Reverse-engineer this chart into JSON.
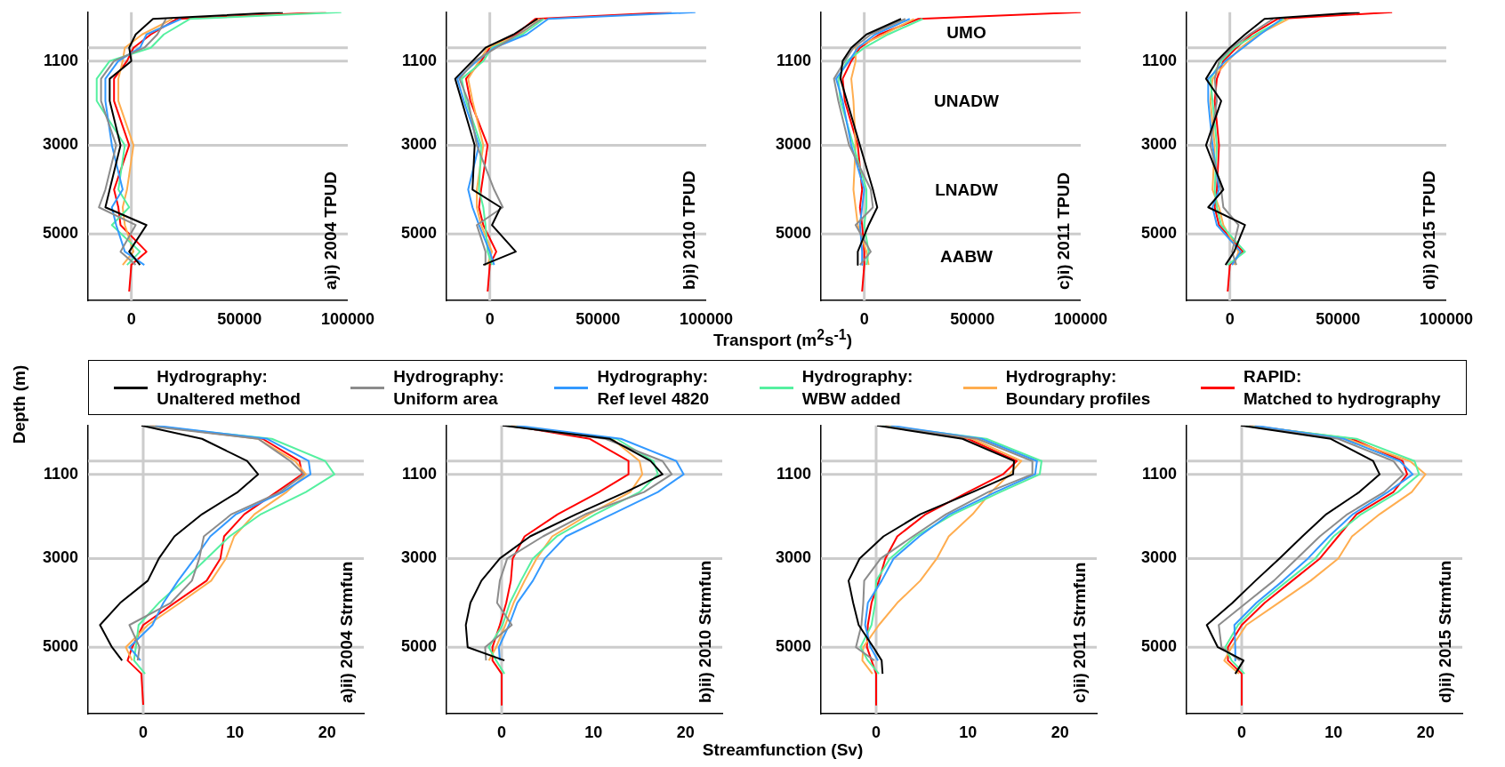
{
  "chart_data": [
    {
      "type": "line",
      "ylabel": "Depth (m)",
      "xlim": [
        -20000,
        100000
      ],
      "xticks": [
        0,
        50000,
        100000
      ],
      "ylim": [
        6500,
        0
      ],
      "yticks": [
        1100,
        3000,
        5000
      ],
      "legend": "bottom",
      "annotations": [
        "a)i) 2004 TPUD"
      ],
      "ref_lines": [
        {
          "axis": "x",
          "value": 0
        },
        {
          "axis": "y",
          "value": 800
        },
        {
          "axis": "y",
          "value": 1100
        },
        {
          "axis": "y",
          "value": 3000
        },
        {
          "axis": "y",
          "value": 5000
        }
      ],
      "series": [
        {
          "name": "Hydrography:\nUnaltered method",
          "color": "#000000",
          "x": [
            70000,
            10000,
            2000,
            -1000,
            0,
            -10000,
            -10000,
            -5000,
            -10000,
            -12000,
            7000,
            -1000,
            4000
          ],
          "values": [
            0,
            150,
            500,
            800,
            1100,
            1500,
            2000,
            3000,
            4000,
            4400,
            4800,
            5400,
            5700
          ]
        },
        {
          "name": "Hydrography:\nUniform area",
          "color": "#8c8c8c",
          "x": [
            16000,
            12000,
            6000,
            -8000,
            -14000,
            -14000,
            -7000,
            -12000,
            -15000,
            2000,
            -5000,
            2000
          ],
          "values": [
            150,
            500,
            800,
            1100,
            1500,
            2000,
            3000,
            4000,
            4400,
            4800,
            5400,
            5700
          ]
        },
        {
          "name": "Hydrography:\nRef level 4820",
          "color": "#3399ff",
          "x": [
            23000,
            7000,
            4000,
            -6000,
            -12000,
            -12000,
            -9000,
            -4000,
            -9000,
            -7000,
            -3000,
            6000
          ],
          "values": [
            150,
            500,
            800,
            1100,
            1500,
            2000,
            3000,
            4000,
            4400,
            4800,
            5400,
            5700
          ]
        },
        {
          "name": "Hydrography:\nWBW added",
          "color": "#55f0a0",
          "x": [
            97000,
            27000,
            15000,
            9000,
            -10000,
            -16000,
            -16000,
            -3000,
            -6000,
            -1000,
            -9000,
            4000,
            -2000
          ],
          "values": [
            0,
            150,
            500,
            800,
            1100,
            1500,
            2000,
            3000,
            4000,
            4400,
            4800,
            5400,
            5700
          ]
        },
        {
          "name": "Hydrography:\nBoundary profiles",
          "color": "#ffad4f",
          "x": [
            19000,
            5000,
            -3000,
            -4000,
            -6000,
            -6000,
            1000,
            -2000,
            -4000,
            -3000,
            1000,
            -4000
          ],
          "values": [
            150,
            500,
            800,
            1100,
            1500,
            2000,
            3000,
            4000,
            4400,
            4800,
            5400,
            5700
          ]
        },
        {
          "name": "RAPID:\nMatched to hydrography",
          "color": "#ff0000",
          "x": [
            90000,
            21000,
            9000,
            1000,
            -2000,
            -8000,
            -8000,
            -1000,
            -8000,
            -6000,
            -5000,
            7000,
            0,
            -1000
          ],
          "values": [
            0,
            150,
            500,
            800,
            1100,
            1500,
            2000,
            3000,
            4000,
            4400,
            4800,
            5400,
            5700,
            6300
          ]
        }
      ]
    },
    {
      "type": "line",
      "xlim": [
        -20000,
        100000
      ],
      "xticks": [
        0,
        50000,
        100000
      ],
      "ylim": [
        6500,
        0
      ],
      "yticks": [
        1100,
        3000,
        5000
      ],
      "annotations": [
        "b)i) 2010 TPUD"
      ],
      "ref_lines": [
        {
          "axis": "x",
          "value": 0
        },
        {
          "axis": "y",
          "value": 800
        },
        {
          "axis": "y",
          "value": 1100
        },
        {
          "axis": "y",
          "value": 3000
        },
        {
          "axis": "y",
          "value": 5000
        }
      ],
      "series": [
        {
          "color": "#000000",
          "x": [
            22000,
            11000,
            -2000,
            -8000,
            -16000,
            -13000,
            -7000,
            -8000,
            5000,
            1000,
            12000,
            -3000
          ],
          "values": [
            150,
            500,
            800,
            1100,
            1500,
            2000,
            3000,
            4000,
            4400,
            4800,
            5400,
            5700
          ]
        },
        {
          "color": "#8c8c8c",
          "x": [
            24000,
            13000,
            3000,
            -7000,
            -14000,
            -10000,
            -6000,
            2000,
            6000,
            -6000,
            -2000,
            -2000
          ],
          "values": [
            150,
            500,
            800,
            1100,
            1500,
            2000,
            3000,
            4000,
            4400,
            4800,
            5400,
            5700
          ]
        },
        {
          "color": "#3399ff",
          "x": [
            95000,
            27000,
            17000,
            2000,
            -6000,
            -15000,
            -12000,
            -5000,
            -10000,
            -8000,
            -5000,
            0,
            2000
          ],
          "values": [
            0,
            150,
            500,
            800,
            1100,
            1500,
            2000,
            3000,
            4000,
            4400,
            4800,
            5400,
            5700
          ]
        },
        {
          "color": "#55f0a0",
          "x": [
            25000,
            15000,
            1000,
            -3000,
            -13000,
            -11000,
            -4000,
            -5000,
            -3000,
            -2000,
            -1000,
            1000
          ],
          "values": [
            150,
            500,
            800,
            1100,
            1500,
            2000,
            3000,
            4000,
            4400,
            4800,
            5400,
            5700
          ]
        },
        {
          "color": "#ffad4f",
          "x": [
            23000,
            14000,
            -1000,
            -5000,
            -10000,
            -8000,
            -3000,
            -6000,
            -6000,
            -4000,
            1000,
            -1000
          ],
          "values": [
            150,
            500,
            800,
            1100,
            1500,
            2000,
            3000,
            4000,
            4400,
            4800,
            5400,
            5700
          ]
        },
        {
          "color": "#ff0000",
          "x": [
            84000,
            21000,
            12000,
            0,
            -4000,
            -11000,
            -9000,
            -1000,
            -4000,
            -5000,
            -3000,
            3000,
            0,
            -1000
          ],
          "values": [
            0,
            150,
            500,
            800,
            1100,
            1500,
            2000,
            3000,
            4000,
            4400,
            4800,
            5400,
            5700,
            6300
          ]
        }
      ]
    },
    {
      "type": "line",
      "xlabel": "Transport (m$^{2}$s$^{-1}$)",
      "xlim": [
        -20000,
        100000
      ],
      "xticks": [
        0,
        50000,
        100000
      ],
      "ylim": [
        6500,
        0
      ],
      "yticks": [
        1100,
        3000,
        5000
      ],
      "annotations": [
        "c)i) 2011 TPUD",
        "UMO",
        "UNADW",
        "LNADW",
        "AABW"
      ],
      "ref_lines": [
        {
          "axis": "x",
          "value": 0
        },
        {
          "axis": "y",
          "value": 800
        },
        {
          "axis": "y",
          "value": 1100
        },
        {
          "axis": "y",
          "value": 3000
        },
        {
          "axis": "y",
          "value": 5000
        }
      ],
      "series": [
        {
          "color": "#000000",
          "x": [
            17000,
            1000,
            -6000,
            -10000,
            -11000,
            -8000,
            -2000,
            4000,
            6000,
            2000,
            -3000,
            -3000
          ],
          "values": [
            150,
            500,
            800,
            1100,
            1500,
            2000,
            3000,
            4000,
            4400,
            4800,
            5400,
            5700
          ]
        },
        {
          "color": "#8c8c8c",
          "x": [
            19000,
            3000,
            -5000,
            -9000,
            -14000,
            -12000,
            -7000,
            3000,
            4000,
            -4000,
            3000,
            -2000
          ],
          "values": [
            150,
            500,
            800,
            1100,
            1500,
            2000,
            3000,
            4000,
            4400,
            4800,
            5400,
            5700
          ]
        },
        {
          "color": "#3399ff",
          "x": [
            21000,
            5000,
            -3000,
            -7000,
            -13000,
            -10000,
            -6000,
            0,
            -1000,
            -2000,
            -1000,
            -1000
          ],
          "values": [
            150,
            500,
            800,
            1100,
            1500,
            2000,
            3000,
            4000,
            4400,
            4800,
            5400,
            5700
          ]
        },
        {
          "color": "#55f0a0",
          "x": [
            27000,
            11000,
            0,
            -8000,
            -12000,
            -11000,
            -5000,
            1000,
            1000,
            0,
            2000,
            1000
          ],
          "values": [
            150,
            500,
            800,
            1100,
            1500,
            2000,
            3000,
            4000,
            4400,
            4800,
            5400,
            5700
          ]
        },
        {
          "color": "#ffad4f",
          "x": [
            23000,
            9000,
            -4000,
            -4000,
            -6000,
            -5000,
            -4000,
            -5000,
            -4000,
            -3000,
            1000,
            2000
          ],
          "values": [
            150,
            500,
            800,
            1100,
            1500,
            2000,
            3000,
            4000,
            4400,
            4800,
            5400,
            5700
          ]
        },
        {
          "color": "#ff0000",
          "x": [
            100000,
            25000,
            7000,
            -2000,
            -6000,
            -10000,
            -9000,
            -3000,
            -1000,
            -2000,
            -1000,
            0,
            0,
            -1000
          ],
          "values": [
            0,
            150,
            500,
            800,
            1100,
            1500,
            2000,
            3000,
            4000,
            4400,
            4800,
            5400,
            5700,
            6300
          ]
        }
      ]
    },
    {
      "type": "line",
      "xlim": [
        -20000,
        100000
      ],
      "xticks": [
        0,
        50000,
        100000
      ],
      "ylim": [
        6500,
        0
      ],
      "yticks": [
        1100,
        3000,
        5000
      ],
      "annotations": [
        "d)i) 2015 TPUD"
      ],
      "ref_lines": [
        {
          "axis": "x",
          "value": 0
        },
        {
          "axis": "y",
          "value": 800
        },
        {
          "axis": "y",
          "value": 1100
        },
        {
          "axis": "y",
          "value": 3000
        },
        {
          "axis": "y",
          "value": 5000
        }
      ],
      "series": [
        {
          "color": "#000000",
          "x": [
            60000,
            16000,
            7000,
            0,
            -6000,
            -11000,
            -4000,
            -11000,
            -3000,
            -10000,
            7000,
            2000,
            -2000
          ],
          "values": [
            0,
            150,
            500,
            800,
            1100,
            1500,
            2000,
            3000,
            4000,
            4400,
            4800,
            5400,
            5700
          ]
        },
        {
          "color": "#8c8c8c",
          "x": [
            20000,
            9000,
            1000,
            -5000,
            -7000,
            -6000,
            -9000,
            -4000,
            -3000,
            4000,
            1000,
            3000
          ],
          "values": [
            150,
            500,
            800,
            1100,
            1500,
            2000,
            3000,
            4000,
            4400,
            4800,
            5400,
            5700
          ]
        },
        {
          "color": "#3399ff",
          "x": [
            24000,
            14000,
            6000,
            -2000,
            -10000,
            -10000,
            -8000,
            -5000,
            -8000,
            -6000,
            5000,
            1000
          ],
          "values": [
            150,
            500,
            800,
            1100,
            1500,
            2000,
            3000,
            4000,
            4400,
            4800,
            5400,
            5700
          ]
        },
        {
          "color": "#55f0a0",
          "x": [
            25000,
            12000,
            2000,
            -4000,
            -9000,
            -8000,
            -6000,
            -7000,
            -6000,
            -4000,
            7000,
            -1000
          ],
          "values": [
            150,
            500,
            800,
            1100,
            1500,
            2000,
            3000,
            4000,
            4400,
            4800,
            5400,
            5700
          ]
        },
        {
          "color": "#ffad4f",
          "x": [
            27000,
            13000,
            5000,
            -1000,
            -8000,
            -9000,
            -7000,
            -8000,
            -5000,
            -3000,
            4000,
            2000
          ],
          "values": [
            150,
            500,
            800,
            1100,
            1500,
            2000,
            3000,
            4000,
            4400,
            4800,
            5400,
            5700
          ]
        },
        {
          "color": "#ff0000",
          "x": [
            75000,
            22000,
            10000,
            3000,
            -3000,
            -6000,
            -7000,
            -5000,
            -6000,
            -7000,
            -5000,
            6000,
            0,
            -1000
          ],
          "values": [
            0,
            150,
            500,
            800,
            1100,
            1500,
            2000,
            3000,
            4000,
            4400,
            4800,
            5400,
            5700,
            6300
          ]
        }
      ]
    },
    {
      "type": "line",
      "xlim": [
        -6,
        24
      ],
      "xticks": [
        0,
        10,
        20
      ],
      "ylim": [
        6500,
        0
      ],
      "yticks": [
        1100,
        3000,
        5000
      ],
      "annotations": [
        "a)ii) 2004 Strmfun"
      ],
      "ref_lines": [
        {
          "axis": "x",
          "value": 0
        },
        {
          "axis": "y",
          "value": 800
        },
        {
          "axis": "y",
          "value": 1100
        },
        {
          "axis": "y",
          "value": 3000
        },
        {
          "axis": "y",
          "value": 5000
        }
      ],
      "series": [
        {
          "color": "#000000",
          "x": [
            -0.2,
            6.4,
            11.3,
            12.5,
            10.3,
            6.4,
            3.4,
            1.7,
            0.5,
            -2.5,
            -4.7,
            -3.4,
            -2.3
          ],
          "values": [
            0,
            300,
            800,
            1100,
            1500,
            2000,
            2500,
            3000,
            3500,
            4000,
            4500,
            5000,
            5300
          ]
        },
        {
          "color": "#8c8c8c",
          "x": [
            0.1,
            12.5,
            16,
            17.5,
            14.9,
            9.6,
            6.6,
            6.1,
            5.3,
            3,
            -1.5,
            -0.4,
            -0.6
          ],
          "values": [
            0,
            300,
            800,
            1100,
            1500,
            2000,
            2500,
            3000,
            3500,
            4000,
            4500,
            5000,
            5300
          ]
        },
        {
          "color": "#3399ff",
          "x": [
            1.3,
            13.5,
            18,
            18.2,
            15.2,
            10.1,
            7.3,
            5.6,
            3.8,
            2.2,
            1,
            -1.5,
            -0.3
          ],
          "values": [
            0,
            300,
            800,
            1100,
            1500,
            2000,
            2500,
            3000,
            3500,
            4000,
            4500,
            5000,
            5300
          ]
        },
        {
          "color": "#55f0a0",
          "x": [
            0.4,
            14,
            19.8,
            20.8,
            17.7,
            12.8,
            9.4,
            6.9,
            4.4,
            1.7,
            -0.5,
            -0.8,
            -1,
            0.2
          ],
          "values": [
            0,
            300,
            800,
            1100,
            1500,
            2000,
            2500,
            3000,
            3500,
            4000,
            4500,
            5000,
            5300,
            5600
          ]
        },
        {
          "color": "#ffad4f",
          "x": [
            1,
            12.5,
            16.5,
            17.7,
            15.6,
            12.1,
            9.9,
            9,
            7.4,
            4,
            0.5,
            -1.9,
            -1.2
          ],
          "values": [
            0,
            300,
            800,
            1100,
            1500,
            2000,
            2500,
            3000,
            3500,
            4000,
            4500,
            5000,
            5300
          ]
        },
        {
          "color": "#ff0000",
          "x": [
            0.7,
            13,
            17,
            17.3,
            14.5,
            11,
            8.8,
            8.4,
            6.9,
            3.4,
            0,
            -1.2,
            -1.7,
            -0.2,
            0
          ],
          "values": [
            0,
            300,
            800,
            1100,
            1500,
            2000,
            2500,
            3000,
            3500,
            4000,
            4500,
            5000,
            5300,
            5600,
            6300
          ]
        }
      ]
    },
    {
      "type": "line",
      "xlim": [
        -6,
        24
      ],
      "xticks": [
        0,
        10,
        20
      ],
      "ylim": [
        6500,
        0
      ],
      "yticks": [
        1100,
        3000,
        5000
      ],
      "annotations": [
        "b)ii) 2010 Strmfun"
      ],
      "ref_lines": [
        {
          "axis": "x",
          "value": 0
        },
        {
          "axis": "y",
          "value": 800
        },
        {
          "axis": "y",
          "value": 1100
        },
        {
          "axis": "y",
          "value": 3000
        },
        {
          "axis": "y",
          "value": 5000
        }
      ],
      "series": [
        {
          "color": "#000000",
          "x": [
            0.1,
            11.8,
            16.2,
            17.5,
            13.5,
            8.1,
            3.1,
            -0.2,
            -2.2,
            -3.4,
            -3.9,
            -3.7,
            0.3
          ],
          "values": [
            0,
            300,
            800,
            1100,
            1500,
            2000,
            2500,
            3000,
            3500,
            4000,
            4500,
            5000,
            5300
          ]
        },
        {
          "color": "#8c8c8c",
          "x": [
            0.4,
            11.3,
            17.5,
            18.5,
            15.5,
            9.1,
            4.5,
            0.6,
            -0.2,
            -0.5,
            1.1,
            -1.8,
            -1.7
          ],
          "values": [
            0,
            300,
            800,
            1100,
            1500,
            2000,
            2500,
            3000,
            3500,
            4000,
            4500,
            5000,
            5300
          ]
        },
        {
          "color": "#3399ff",
          "x": [
            1.6,
            13,
            19,
            19.8,
            17,
            12,
            7,
            4.7,
            3.4,
            1.7,
            0.8,
            -0.3,
            -0.2
          ],
          "values": [
            0,
            300,
            800,
            1100,
            1500,
            2000,
            2500,
            3000,
            3500,
            4000,
            4500,
            5000,
            5300
          ]
        },
        {
          "color": "#55f0a0",
          "x": [
            0.7,
            12.5,
            16.5,
            17,
            15,
            10.2,
            6,
            3.4,
            2.1,
            0.9,
            0.1,
            -1.4,
            -0.6,
            0.3
          ],
          "values": [
            0,
            300,
            800,
            1100,
            1500,
            2000,
            2500,
            3000,
            3500,
            4000,
            4500,
            5000,
            5300,
            5600
          ]
        },
        {
          "color": "#ffad4f",
          "x": [
            1.3,
            12,
            15,
            15.3,
            14,
            9.5,
            5.5,
            3.8,
            2.5,
            1.3,
            0.4,
            -0.6,
            -1.4
          ],
          "values": [
            0,
            300,
            800,
            1100,
            1500,
            2000,
            2500,
            3000,
            3500,
            4000,
            4500,
            5000,
            5300
          ]
        },
        {
          "color": "#ff0000",
          "x": [
            1,
            9.6,
            13.8,
            13.8,
            10.6,
            6.1,
            2.5,
            1.2,
            1,
            0.5,
            -0.2,
            -1,
            -1,
            0,
            0
          ],
          "values": [
            0,
            300,
            800,
            1100,
            1500,
            2000,
            2500,
            3000,
            3500,
            4000,
            4500,
            5000,
            5300,
            5600,
            6300
          ]
        }
      ]
    },
    {
      "type": "line",
      "xlabel": "Streamfunction (Sv)",
      "xlim": [
        -6,
        24
      ],
      "xticks": [
        0,
        10,
        20
      ],
      "ylim": [
        6500,
        0
      ],
      "yticks": [
        1100,
        3000,
        5000
      ],
      "annotations": [
        "c)ii) 2011 Strmfun"
      ],
      "ref_lines": [
        {
          "axis": "x",
          "value": 0
        },
        {
          "axis": "y",
          "value": 800
        },
        {
          "axis": "y",
          "value": 1100
        },
        {
          "axis": "y",
          "value": 3000
        },
        {
          "axis": "y",
          "value": 5000
        }
      ],
      "series": [
        {
          "color": "#000000",
          "x": [
            0.1,
            9.4,
            15,
            14.9,
            10.5,
            4.8,
            0.8,
            -1.8,
            -3,
            -2.5,
            -1.9,
            -0.3,
            0.6,
            0.7
          ],
          "values": [
            0,
            300,
            800,
            1100,
            1500,
            2000,
            2500,
            3000,
            3500,
            4000,
            4500,
            5000,
            5300,
            5600
          ]
        },
        {
          "color": "#8c8c8c",
          "x": [
            0.4,
            11,
            17,
            17,
            12.2,
            7.6,
            4,
            0.5,
            -1.3,
            -1.4,
            -1.6,
            -2.2,
            -0.2
          ],
          "values": [
            0,
            300,
            800,
            1100,
            1500,
            2000,
            2500,
            3000,
            3500,
            4000,
            4500,
            5000,
            5300
          ]
        },
        {
          "color": "#3399ff",
          "x": [
            1.6,
            11.5,
            17.5,
            17.3,
            13,
            8,
            4.7,
            1.9,
            0.6,
            -0.9,
            -1.2,
            -0.6,
            0.2
          ],
          "values": [
            0,
            300,
            800,
            1100,
            1500,
            2000,
            2500,
            3000,
            3500,
            4000,
            4500,
            5000,
            5300
          ]
        },
        {
          "color": "#55f0a0",
          "x": [
            0.7,
            12,
            18,
            17.8,
            13.5,
            8.4,
            4.3,
            1.5,
            0,
            -0.1,
            -0.5,
            -1.7,
            -0.9,
            0.3
          ],
          "values": [
            0,
            300,
            800,
            1100,
            1500,
            2000,
            2500,
            3000,
            3500,
            4000,
            4500,
            5000,
            5300,
            5600
          ]
        },
        {
          "color": "#ffad4f",
          "x": [
            1.3,
            10.5,
            15.8,
            14.5,
            12.5,
            10.5,
            7.9,
            6.6,
            4.8,
            2.3,
            0.3,
            -1.4,
            -1.5,
            -0.4
          ],
          "values": [
            0,
            300,
            800,
            1100,
            1500,
            2000,
            2500,
            3000,
            3500,
            4000,
            4500,
            5000,
            5300,
            5600
          ]
        },
        {
          "color": "#ff0000",
          "x": [
            1,
            10,
            15.3,
            13.8,
            10,
            5.4,
            2.3,
            1,
            0.3,
            -0.5,
            -0.9,
            -1,
            -0.5,
            0,
            0
          ],
          "values": [
            0,
            300,
            800,
            1100,
            1500,
            2000,
            2500,
            3000,
            3500,
            4000,
            4500,
            5000,
            5300,
            5600,
            6300
          ]
        }
      ]
    },
    {
      "type": "line",
      "xlim": [
        -6,
        24
      ],
      "xticks": [
        0,
        10,
        20
      ],
      "ylim": [
        6500,
        0
      ],
      "yticks": [
        1100,
        3000,
        5000
      ],
      "annotations": [
        "d)ii) 2015 Strmfun"
      ],
      "ref_lines": [
        {
          "axis": "x",
          "value": 0
        },
        {
          "axis": "y",
          "value": 800
        },
        {
          "axis": "y",
          "value": 1100
        },
        {
          "axis": "y",
          "value": 3000
        },
        {
          "axis": "y",
          "value": 5000
        }
      ],
      "series": [
        {
          "color": "#000000",
          "x": [
            -0.1,
            9.7,
            14.3,
            15,
            12.8,
            9.2,
            6.6,
            4.1,
            1.5,
            -1,
            -3.8,
            -2.6,
            0.2,
            -0.7
          ],
          "values": [
            0,
            300,
            800,
            1100,
            1500,
            2000,
            2500,
            3000,
            3500,
            4000,
            4500,
            5000,
            5300,
            5600
          ]
        },
        {
          "color": "#8c8c8c",
          "x": [
            0.2,
            10.5,
            16.5,
            17.6,
            15.5,
            11.5,
            8.5,
            6,
            3.5,
            0.5,
            -2.5,
            -2.2,
            -0.2
          ],
          "values": [
            0,
            300,
            800,
            1100,
            1500,
            2000,
            2500,
            3000,
            3500,
            4000,
            4500,
            5000,
            5300
          ]
        },
        {
          "color": "#3399ff",
          "x": [
            1.4,
            11.1,
            17.2,
            18.6,
            15.9,
            12.1,
            9.5,
            7.2,
            4.5,
            1.6,
            -0.8,
            -0.7,
            -0.7
          ],
          "values": [
            0,
            300,
            800,
            1100,
            1500,
            2000,
            2500,
            3000,
            3500,
            4000,
            4500,
            5000,
            5300
          ]
        },
        {
          "color": "#55f0a0",
          "x": [
            0.5,
            12.5,
            18.8,
            19.3,
            17,
            13,
            10,
            8,
            5,
            2,
            -0.4,
            -1.8,
            -1.1,
            0.3
          ],
          "values": [
            0,
            300,
            800,
            1100,
            1500,
            2000,
            2500,
            3000,
            3500,
            4000,
            4500,
            5000,
            5300,
            5600
          ]
        },
        {
          "color": "#ffad4f",
          "x": [
            1.1,
            11.4,
            18.3,
            20,
            18.5,
            15,
            12,
            10.5,
            7.5,
            4,
            0.5,
            -1.1,
            -1.9,
            -0.3
          ],
          "values": [
            0,
            300,
            800,
            1100,
            1500,
            2000,
            2500,
            3000,
            3500,
            4000,
            4500,
            5000,
            5300,
            5600
          ]
        },
        {
          "color": "#ff0000",
          "x": [
            0.8,
            12,
            17.5,
            18,
            16.5,
            12.5,
            10.5,
            8.5,
            5.5,
            2.5,
            0,
            -1.5,
            -1.5,
            0,
            0
          ],
          "values": [
            0,
            300,
            800,
            1100,
            1500,
            2000,
            2500,
            3000,
            3500,
            4000,
            4500,
            5000,
            5300,
            5600,
            6300
          ]
        }
      ]
    }
  ]
}
